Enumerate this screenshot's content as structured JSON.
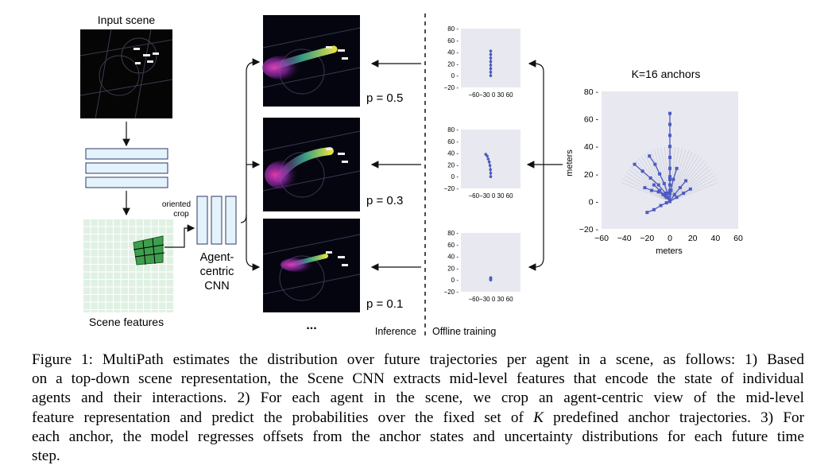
{
  "figure": {
    "input_scene_label": "Input scene",
    "scene_features_label": "Scene features",
    "oriented_crop_label": [
      "oriented",
      "crop"
    ],
    "agent_cnn_label": [
      "Agent-",
      "centric",
      "CNN"
    ],
    "probabilities": [
      "p = 0.5",
      "p = 0.3",
      "p = 0.1"
    ],
    "ellipsis": "...",
    "inference_label": "Inference",
    "offline_label": "Offline training",
    "anchors_title": "K=16 anchors",
    "small_plot_yticks": [
      "80",
      "60",
      "40",
      "20",
      "0",
      "−20"
    ],
    "small_plot_xticks": "−60−30 0  30 60",
    "big_plot": {
      "ylabel": "meters",
      "xlabel": "meters",
      "yticks": [
        "80",
        "60",
        "40",
        "20",
        "0",
        "−20"
      ],
      "xticks": [
        "−60",
        "−40",
        "−20",
        "0",
        "20",
        "40",
        "60"
      ]
    },
    "colors": {
      "anchor_blue": "#4c5bc0",
      "panel_bg": "#e8e8f0",
      "feature_box": "#e4f3fb"
    }
  },
  "chart_data": [
    {
      "type": "scatter",
      "title": "",
      "xlim": [
        -60,
        60
      ],
      "ylim": [
        -20,
        80
      ],
      "series": [
        {
          "x": [
            0,
            0,
            0,
            0,
            0,
            0,
            0,
            0
          ],
          "y": [
            0,
            6,
            12,
            18,
            24,
            30,
            36,
            42
          ]
        }
      ]
    },
    {
      "type": "scatter",
      "title": "",
      "xlim": [
        -60,
        60
      ],
      "ylim": [
        -20,
        80
      ],
      "series": [
        {
          "x": [
            -10,
            -7,
            -5,
            -3,
            -1.5,
            -0.5,
            0,
            0
          ],
          "y": [
            38,
            35,
            30,
            25,
            19,
            12,
            6,
            0
          ]
        }
      ]
    },
    {
      "type": "scatter",
      "title": "",
      "xlim": [
        -60,
        60
      ],
      "ylim": [
        -20,
        80
      ],
      "series": [
        {
          "x": [
            0,
            0,
            0,
            0,
            0
          ],
          "y": [
            0,
            1,
            2,
            3,
            4
          ]
        }
      ]
    },
    {
      "type": "scatter",
      "title": "K=16 anchors",
      "xlabel": "meters",
      "ylabel": "meters",
      "xlim": [
        -60,
        60
      ],
      "ylim": [
        -20,
        80
      ],
      "series": [
        {
          "x": [
            0,
            0,
            0,
            0,
            0,
            0,
            0,
            0,
            0
          ],
          "y": [
            0,
            8,
            16,
            24,
            32,
            40,
            48,
            56,
            64
          ]
        },
        {
          "x": [
            0,
            0,
            0,
            0,
            0
          ],
          "y": [
            0,
            6,
            12,
            18,
            24
          ]
        },
        {
          "x": [
            0,
            -4,
            -10,
            -17,
            -24,
            -31
          ],
          "y": [
            0,
            6,
            12,
            17,
            22,
            27
          ]
        },
        {
          "x": [
            0,
            -2,
            -5,
            -9,
            -13,
            -18
          ],
          "y": [
            0,
            6,
            13,
            20,
            27,
            33
          ]
        },
        {
          "x": [
            0,
            -4,
            -9,
            -14
          ],
          "y": [
            0,
            4,
            8,
            12
          ]
        },
        {
          "x": [
            0,
            -3,
            -6,
            -10,
            -16,
            -22
          ],
          "y": [
            0,
            3,
            5,
            7,
            8,
            10
          ]
        },
        {
          "x": [
            0,
            -3,
            -8,
            -14,
            -20
          ],
          "y": [
            0,
            -1,
            -3,
            -6,
            -8
          ]
        },
        {
          "x": [
            0,
            4,
            9,
            14
          ],
          "y": [
            0,
            5,
            10,
            15
          ]
        },
        {
          "x": [
            0,
            6,
            12,
            18
          ],
          "y": [
            0,
            3,
            6,
            9
          ]
        },
        {
          "x": [
            0,
            1,
            3,
            6
          ],
          "y": [
            0,
            8,
            16,
            24
          ]
        }
      ]
    }
  ]
}
